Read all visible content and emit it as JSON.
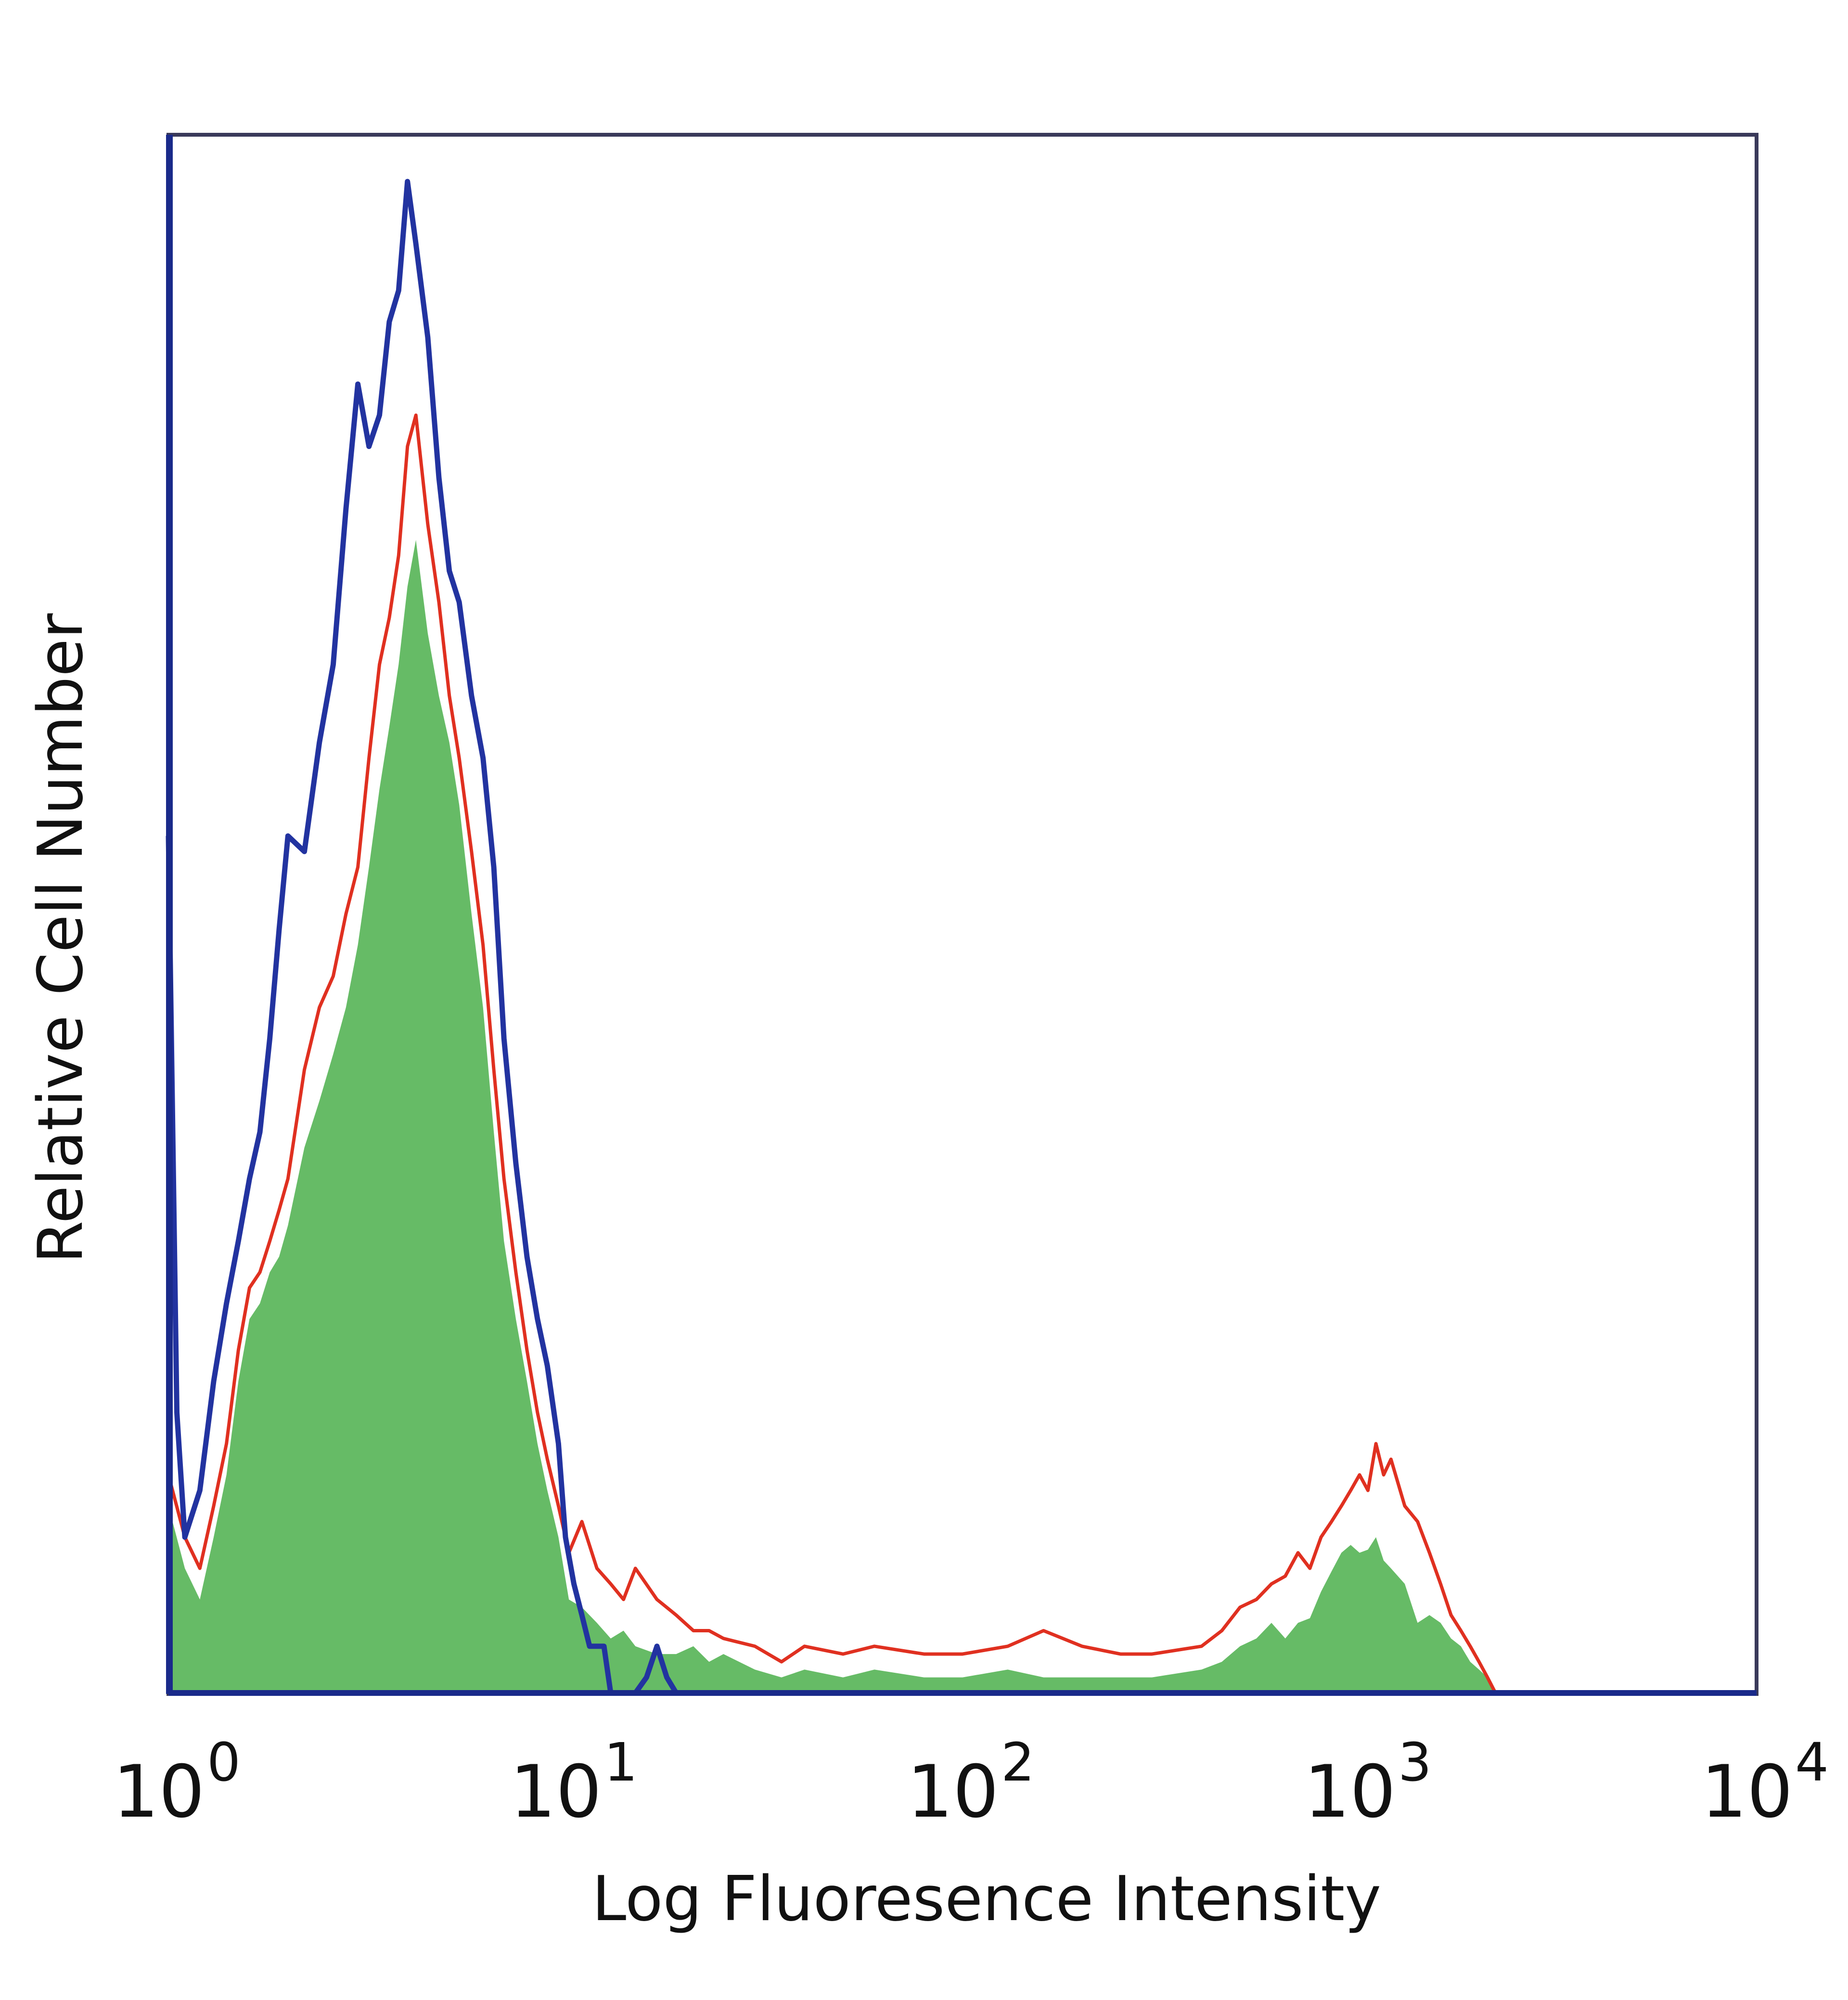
{
  "chart_data": {
    "type": "area",
    "xlabel": "Log Fluoresence Intensity",
    "ylabel": "Relative Cell Number",
    "x_scale": "log",
    "xlim": [
      1,
      10000
    ],
    "ylim": [
      0,
      100
    ],
    "x_ticks": [
      {
        "base": "10",
        "exp": "0"
      },
      {
        "base": "10",
        "exp": "1"
      },
      {
        "base": "10",
        "exp": "2"
      },
      {
        "base": "10",
        "exp": "3"
      },
      {
        "base": "10",
        "exp": "4"
      }
    ],
    "grid": false,
    "legend": false,
    "series": [
      {
        "style": "filled",
        "color": "#66bb66",
        "x": [
          1.0,
          1.1,
          1.2,
          1.3,
          1.4,
          1.5,
          1.6,
          1.7,
          1.8,
          1.9,
          2.0,
          2.2,
          2.4,
          2.6,
          2.8,
          3.0,
          3.2,
          3.4,
          3.6,
          3.8,
          4.0,
          4.2,
          4.5,
          4.8,
          5.1,
          5.4,
          5.8,
          6.2,
          6.6,
          7.0,
          7.5,
          8.0,
          8.5,
          9.0,
          9.6,
          10.2,
          11,
          12,
          13,
          14,
          15,
          17,
          19,
          21,
          23,
          25,
          30,
          35,
          40,
          50,
          60,
          80,
          100,
          130,
          160,
          200,
          250,
          300,
          400,
          450,
          500,
          550,
          600,
          650,
          700,
          750,
          800,
          850,
          900,
          950,
          1000,
          1050,
          1100,
          1150,
          1200,
          1300,
          1400,
          1500,
          1600,
          1700,
          1800,
          1900,
          2000,
          2100,
          2200
        ],
        "values": [
          12,
          8,
          6,
          10,
          14,
          20,
          24,
          25,
          27,
          28,
          30,
          35,
          38,
          41,
          44,
          48,
          53,
          58,
          62,
          66,
          71,
          74,
          68,
          64,
          61,
          57,
          50,
          44,
          36,
          29,
          24,
          20,
          16,
          13,
          10,
          6,
          5.5,
          4.5,
          3.5,
          4,
          3,
          2.5,
          2.5,
          3,
          2,
          2.5,
          1.5,
          1,
          1.5,
          1,
          1.5,
          1,
          1,
          1.5,
          1,
          1,
          1,
          1,
          1.5,
          2,
          3,
          3.5,
          4.5,
          3.5,
          4.5,
          4.8,
          6.5,
          7.8,
          9,
          9.5,
          9,
          9.2,
          10,
          8.5,
          8,
          7,
          4.5,
          5,
          4.5,
          3.5,
          3,
          2,
          1.5,
          1,
          0
        ]
      },
      {
        "style": "line",
        "color": "#e03020",
        "x": [
          1.0,
          1.1,
          1.2,
          1.3,
          1.4,
          1.5,
          1.6,
          1.7,
          1.8,
          1.9,
          2.0,
          2.2,
          2.4,
          2.6,
          2.8,
          3.0,
          3.2,
          3.4,
          3.6,
          3.8,
          4.0,
          4.2,
          4.5,
          4.8,
          5.1,
          5.4,
          5.8,
          6.2,
          6.6,
          7.0,
          7.5,
          8.0,
          8.5,
          9.0,
          9.6,
          10.2,
          11,
          12,
          13,
          14,
          15,
          17,
          19,
          21,
          23,
          25,
          30,
          35,
          40,
          50,
          60,
          80,
          100,
          130,
          160,
          200,
          250,
          300,
          400,
          450,
          500,
          550,
          600,
          650,
          700,
          750,
          800,
          850,
          900,
          950,
          1000,
          1050,
          1100,
          1150,
          1200,
          1300,
          1400,
          1500,
          1600,
          1700,
          1800,
          1900,
          2000,
          2100,
          2200
        ],
        "values": [
          14,
          10,
          8,
          12,
          16,
          22,
          26,
          27,
          29,
          31,
          33,
          40,
          44,
          46,
          50,
          53,
          60,
          66,
          69,
          73,
          80,
          82,
          75,
          70,
          64,
          60,
          54,
          48,
          40,
          33,
          27,
          22,
          18,
          15,
          12,
          9,
          11,
          8,
          7,
          6,
          8,
          6,
          5,
          4,
          4,
          3.5,
          3,
          2,
          3,
          2.5,
          3,
          2.5,
          2.5,
          3,
          4,
          3,
          2.5,
          2.5,
          3,
          4,
          5.5,
          6,
          7,
          7.5,
          9,
          8,
          10,
          11,
          12,
          13,
          14,
          13,
          16,
          14,
          15,
          12,
          11,
          9,
          7,
          5,
          4,
          3,
          2,
          1,
          0
        ]
      },
      {
        "style": "line",
        "color": "#2233a0",
        "x": [
          1.0,
          1.05,
          1.1,
          1.2,
          1.3,
          1.4,
          1.5,
          1.6,
          1.7,
          1.8,
          1.9,
          2.0,
          2.2,
          2.4,
          2.6,
          2.8,
          3.0,
          3.2,
          3.4,
          3.6,
          3.8,
          4.0,
          4.2,
          4.5,
          4.8,
          5.1,
          5.4,
          5.8,
          6.2,
          6.6,
          7.0,
          7.5,
          8.0,
          8.5,
          9.0,
          9.6,
          10.0,
          10.5,
          11,
          11.5,
          12,
          12.5,
          13,
          14,
          15,
          16,
          17,
          18,
          19,
          20
        ],
        "values": [
          55,
          18,
          10,
          13,
          20,
          25,
          29,
          33,
          36,
          42,
          49,
          55,
          54,
          61,
          66,
          76,
          84,
          80,
          82,
          88,
          90,
          97,
          93,
          87,
          78,
          72,
          70,
          64,
          60,
          53,
          42,
          34,
          28,
          24,
          21,
          16,
          10,
          7,
          5,
          3,
          3,
          3,
          0,
          0,
          0,
          1,
          3,
          1,
          0,
          0
        ]
      }
    ]
  }
}
